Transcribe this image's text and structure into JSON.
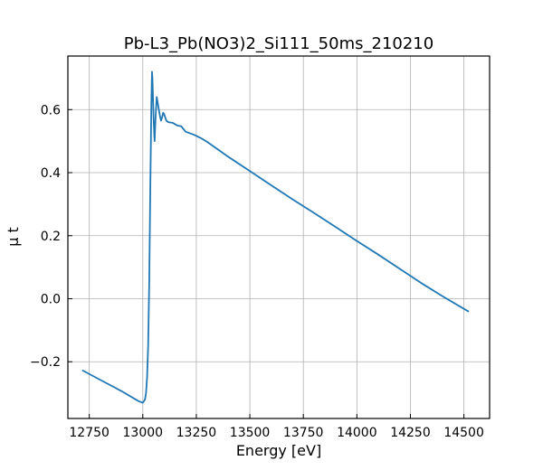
{
  "chart_data": {
    "type": "line",
    "title": "Pb-L3_Pb(NO3)2_Si111_50ms_210210",
    "xlabel": "Energy [eV]",
    "ylabel": "μ t",
    "xlim": [
      12650,
      14620
    ],
    "ylim": [
      -0.38,
      0.77
    ],
    "xticks": [
      12750,
      13000,
      13250,
      13500,
      13750,
      14000,
      14250,
      14500
    ],
    "yticks": [
      -0.2,
      0.0,
      0.2,
      0.4,
      0.6
    ],
    "xtick_labels": [
      "12750",
      "13000",
      "13250",
      "13500",
      "13750",
      "14000",
      "14250",
      "14500"
    ],
    "ytick_labels": [
      "−0.2",
      "0.0",
      "0.2",
      "0.4",
      "0.6"
    ],
    "grid": true,
    "legend": "none",
    "series": [
      {
        "color": "#1f77b4",
        "x": [
          12720,
          12800,
          12900,
          12980,
          13000,
          13010,
          13015,
          13020,
          13025,
          13030,
          13035,
          13040,
          13043,
          13045,
          13050,
          13055,
          13060,
          13065,
          13070,
          13075,
          13080,
          13085,
          13090,
          13095,
          13100,
          13110,
          13120,
          13140,
          13160,
          13180,
          13200,
          13220,
          13240,
          13270,
          13300,
          13400,
          13500,
          13600,
          13700,
          13800,
          13900,
          14000,
          14100,
          14200,
          14300,
          14400,
          14520
        ],
        "y": [
          -0.228,
          -0.257,
          -0.293,
          -0.325,
          -0.33,
          -0.32,
          -0.3,
          -0.25,
          -0.15,
          0.05,
          0.35,
          0.62,
          0.72,
          0.7,
          0.58,
          0.5,
          0.58,
          0.64,
          0.62,
          0.6,
          0.58,
          0.565,
          0.575,
          0.59,
          0.585,
          0.565,
          0.56,
          0.558,
          0.55,
          0.547,
          0.53,
          0.525,
          0.52,
          0.51,
          0.498,
          0.45,
          0.405,
          0.36,
          0.315,
          0.272,
          0.228,
          0.183,
          0.14,
          0.095,
          0.05,
          0.008,
          -0.04
        ]
      }
    ]
  }
}
